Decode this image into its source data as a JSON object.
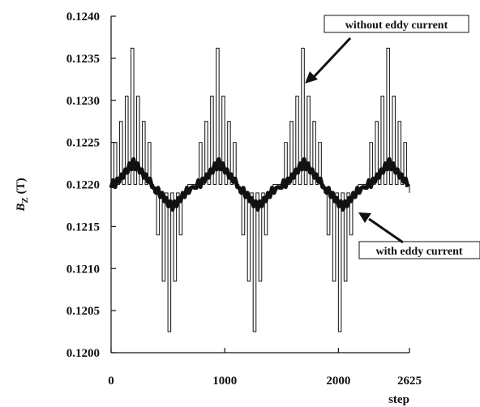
{
  "chart_data": {
    "type": "line",
    "title": "",
    "xlabel": "step",
    "ylabel": "B_z (T)",
    "ylabel_main": "B",
    "ylabel_sub": "Z",
    "ylabel_unit": "(T)",
    "xlim": [
      0,
      2625
    ],
    "ylim": [
      0.12,
      0.124
    ],
    "x_ticks": [
      0,
      1000,
      2000,
      2625
    ],
    "x_tick_labels": [
      "0",
      "1000",
      "2000",
      "2625"
    ],
    "y_ticks": [
      0.12,
      0.1205,
      0.121,
      0.1215,
      0.122,
      0.1225,
      0.123,
      0.1235,
      0.124
    ],
    "y_tick_labels": [
      "0.1200",
      "0.1205",
      "0.1210",
      "0.1215",
      "0.1220",
      "0.1225",
      "0.1230",
      "0.1235",
      "0.1240"
    ],
    "grid": false,
    "legend": "none",
    "period": 750,
    "series": [
      {
        "name": "without eddy current",
        "style": "thin",
        "color": "#222222",
        "cycle_x": [
          0,
          25,
          25,
          50,
          50,
          75,
          75,
          100,
          100,
          125,
          125,
          150,
          150,
          175,
          175,
          200,
          200,
          225,
          225,
          250,
          250,
          275,
          275,
          300,
          300,
          325,
          325,
          350,
          350,
          375,
          375,
          400,
          400,
          425,
          425,
          450,
          450,
          475,
          475,
          500,
          500,
          525,
          525,
          550,
          550,
          575,
          575,
          600,
          600,
          625,
          625,
          650,
          650,
          675,
          675,
          700,
          700,
          725,
          725,
          750
        ],
        "cycle_y": [
          0.122,
          0.122,
          0.1225,
          0.1225,
          0.122,
          0.122,
          0.12275,
          0.12275,
          0.122,
          0.122,
          0.12305,
          0.12305,
          0.122,
          0.122,
          0.12362,
          0.12362,
          0.122,
          0.122,
          0.12305,
          0.12305,
          0.122,
          0.122,
          0.12275,
          0.12275,
          0.122,
          0.122,
          0.1225,
          0.1225,
          0.122,
          0.122,
          0.1219,
          0.1219,
          0.1214,
          0.1214,
          0.1219,
          0.1219,
          0.12085,
          0.12085,
          0.1219,
          0.1219,
          0.12025,
          0.12025,
          0.1219,
          0.1219,
          0.12085,
          0.12085,
          0.1219,
          0.1219,
          0.1214,
          0.1214,
          0.1219,
          0.1219,
          0.1219,
          0.1219,
          0.122,
          0.122,
          0.122,
          0.122,
          0.122,
          0.122
        ]
      },
      {
        "name": "with eddy current",
        "style": "thick",
        "color": "#111111",
        "cycle_x": [
          0,
          18,
          36,
          54,
          72,
          90,
          108,
          126,
          144,
          162,
          180,
          198,
          216,
          234,
          252,
          270,
          288,
          306,
          324,
          342,
          360,
          378,
          396,
          414,
          432,
          450,
          468,
          486,
          504,
          522,
          540,
          558,
          576,
          594,
          612,
          630,
          648,
          666,
          684,
          702,
          720,
          738,
          750
        ],
        "cycle_y": [
          0.12196,
          0.12205,
          0.12197,
          0.12207,
          0.12203,
          0.12212,
          0.12208,
          0.12218,
          0.12214,
          0.12225,
          0.12218,
          0.1223,
          0.12218,
          0.12225,
          0.12214,
          0.12218,
          0.12208,
          0.12212,
          0.12203,
          0.12207,
          0.12197,
          0.12196,
          0.1219,
          0.12196,
          0.12185,
          0.1219,
          0.1218,
          0.12184,
          0.12174,
          0.1218,
          0.1217,
          0.1218,
          0.12174,
          0.12184,
          0.1218,
          0.1219,
          0.12185,
          0.12196,
          0.1219,
          0.12196,
          0.12197,
          0.12196,
          0.12196
        ]
      }
    ],
    "annotations": [
      {
        "text": "without eddy current",
        "target_series": "without eddy current"
      },
      {
        "text": "with eddy current",
        "target_series": "with eddy current"
      }
    ]
  }
}
